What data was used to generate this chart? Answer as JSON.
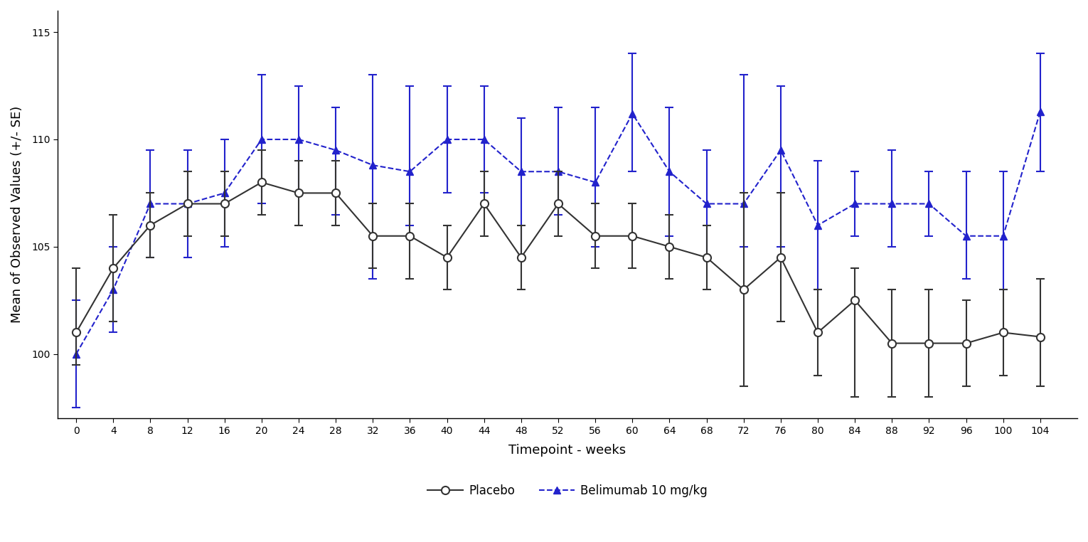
{
  "weeks": [
    0,
    4,
    8,
    12,
    16,
    20,
    24,
    28,
    32,
    36,
    40,
    44,
    48,
    52,
    56,
    60,
    64,
    68,
    72,
    76,
    80,
    84,
    88,
    92,
    96,
    100,
    104
  ],
  "placebo_mean": [
    101.0,
    104.0,
    106.0,
    107.0,
    107.0,
    108.0,
    107.5,
    107.5,
    105.5,
    105.5,
    104.5,
    107.0,
    104.5,
    107.0,
    105.5,
    105.5,
    105.0,
    104.5,
    103.0,
    104.5,
    101.0,
    102.5,
    100.5,
    100.5,
    100.5,
    101.0,
    100.8
  ],
  "placebo_lower": [
    99.5,
    101.5,
    104.5,
    105.5,
    105.5,
    106.5,
    106.0,
    106.0,
    104.0,
    103.5,
    103.0,
    105.5,
    103.0,
    105.5,
    104.0,
    104.0,
    103.5,
    103.0,
    98.5,
    101.5,
    99.0,
    98.0,
    98.0,
    98.0,
    98.5,
    99.0,
    98.5
  ],
  "placebo_upper": [
    104.0,
    106.5,
    107.5,
    108.5,
    108.5,
    109.5,
    109.0,
    109.0,
    107.0,
    107.0,
    106.0,
    108.5,
    106.0,
    108.5,
    107.0,
    107.0,
    106.5,
    106.0,
    107.5,
    107.5,
    103.0,
    104.0,
    103.0,
    103.0,
    102.5,
    103.0,
    103.5
  ],
  "belimumab_mean": [
    100.0,
    103.0,
    107.0,
    107.0,
    107.5,
    110.0,
    110.0,
    109.5,
    108.8,
    108.5,
    110.0,
    110.0,
    108.5,
    108.5,
    108.0,
    111.2,
    108.5,
    107.0,
    107.0,
    109.5,
    106.0,
    107.0,
    107.0,
    107.0,
    105.5,
    105.5,
    111.3
  ],
  "belimumab_lower": [
    97.5,
    101.0,
    104.5,
    104.5,
    105.0,
    107.0,
    107.5,
    106.5,
    103.5,
    106.0,
    107.5,
    107.5,
    104.5,
    106.5,
    105.0,
    108.5,
    105.5,
    104.5,
    105.0,
    105.0,
    103.0,
    105.5,
    105.0,
    105.5,
    103.5,
    103.0,
    108.5
  ],
  "belimumab_upper": [
    102.5,
    105.0,
    109.5,
    109.5,
    110.0,
    113.0,
    112.5,
    111.5,
    113.0,
    112.5,
    112.5,
    112.5,
    111.0,
    111.5,
    111.5,
    114.0,
    111.5,
    109.5,
    113.0,
    112.5,
    109.0,
    108.5,
    109.5,
    108.5,
    108.5,
    108.5,
    114.0
  ],
  "placebo_color": "#333333",
  "belimumab_color": "#2222cc",
  "xlabel": "Timepoint - weeks",
  "ylabel": "Mean of Observed Values (+/- SE)",
  "ylim_min": 97,
  "ylim_max": 116,
  "yticks": [
    100,
    105,
    110,
    115
  ],
  "background_color": "#ffffff",
  "legend_placebo": "Placebo",
  "legend_belimumab": "Belimumab 10 mg/kg"
}
